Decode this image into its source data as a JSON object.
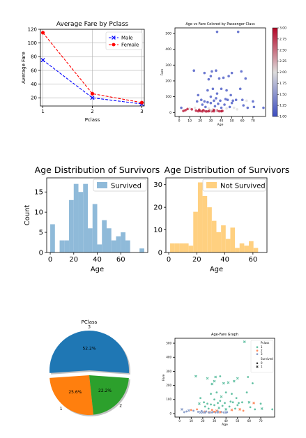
{
  "chart_data": [
    {
      "type": "line",
      "title": "Average Fare by Pclass",
      "xlabel": "Pclass",
      "ylabel": "Average Fare",
      "x": [
        1,
        2,
        3
      ],
      "xticks": [
        "1",
        "2",
        "3"
      ],
      "xlim": [
        0.95,
        3.05
      ],
      "ylim": [
        8,
        120
      ],
      "yticks": [
        "20",
        "40",
        "60",
        "80",
        "100",
        "120"
      ],
      "grid": true,
      "legend": "top-right",
      "series": [
        {
          "name": "Male",
          "values": [
            75,
            20,
            11
          ],
          "color": "#0000ff",
          "marker": "x"
        },
        {
          "name": "Female",
          "values": [
            115,
            26,
            13
          ],
          "color": "#ff0000",
          "marker": "o"
        }
      ]
    },
    {
      "type": "scatter",
      "title": "Age vs Fare Colored by Passenger Class",
      "xlabel": "Age",
      "ylabel": "Fare",
      "xlim": [
        -4,
        82
      ],
      "ylim": [
        -25,
        535
      ],
      "xticks": [
        "0",
        "10",
        "20",
        "30",
        "40",
        "50",
        "60",
        "70"
      ],
      "yticks": [
        "0",
        "100",
        "200",
        "300",
        "400",
        "500"
      ],
      "colorbar": {
        "min": 1.0,
        "max": 3.0,
        "ticks": [
          "1.00",
          "1.25",
          "1.50",
          "1.75",
          "2.00",
          "2.25",
          "2.50",
          "2.75",
          "3.00"
        ]
      },
      "colormap": [
        "#3b4cc0",
        "#dddcdc",
        "#b40426"
      ],
      "points": [
        [
          2,
          30,
          1
        ],
        [
          4,
          10,
          3
        ],
        [
          6,
          15,
          3
        ],
        [
          8,
          22,
          3
        ],
        [
          10,
          25,
          2
        ],
        [
          12,
          20,
          3
        ],
        [
          14,
          265,
          1
        ],
        [
          15,
          30,
          2
        ],
        [
          16,
          12,
          3
        ],
        [
          17,
          70,
          1
        ],
        [
          18,
          110,
          1
        ],
        [
          19,
          18,
          3
        ],
        [
          20,
          9,
          3
        ],
        [
          21,
          80,
          1
        ],
        [
          22,
          50,
          1
        ],
        [
          22,
          13,
          2
        ],
        [
          23,
          15,
          3
        ],
        [
          24,
          70,
          1
        ],
        [
          24,
          250,
          1
        ],
        [
          25,
          35,
          1
        ],
        [
          25,
          8,
          3
        ],
        [
          26,
          10,
          2
        ],
        [
          27,
          65,
          1
        ],
        [
          27,
          140,
          1
        ],
        [
          28,
          210,
          1
        ],
        [
          28,
          8,
          3
        ],
        [
          29,
          12,
          3
        ],
        [
          30,
          230,
          1
        ],
        [
          30,
          100,
          1
        ],
        [
          30,
          60,
          1
        ],
        [
          31,
          260,
          1
        ],
        [
          31,
          8,
          3
        ],
        [
          32,
          150,
          1
        ],
        [
          32,
          20,
          2
        ],
        [
          33,
          75,
          1
        ],
        [
          33,
          8,
          3
        ],
        [
          34,
          40,
          1
        ],
        [
          35,
          265,
          1
        ],
        [
          35,
          90,
          1
        ],
        [
          36,
          120,
          1
        ],
        [
          36,
          12,
          3
        ],
        [
          37,
          55,
          1
        ],
        [
          38,
          215,
          1
        ],
        [
          38,
          8,
          3
        ],
        [
          39,
          75,
          1
        ],
        [
          40,
          30,
          1
        ],
        [
          40,
          150,
          1
        ],
        [
          41,
          10,
          3
        ],
        [
          42,
          220,
          1
        ],
        [
          43,
          50,
          1
        ],
        [
          44,
          85,
          1
        ],
        [
          45,
          26,
          2
        ],
        [
          45,
          140,
          1
        ],
        [
          46,
          80,
          1
        ],
        [
          47,
          230,
          1
        ],
        [
          48,
          35,
          1
        ],
        [
          49,
          110,
          1
        ],
        [
          50,
          250,
          1
        ],
        [
          50,
          60,
          1
        ],
        [
          51,
          75,
          1
        ],
        [
          52,
          30,
          2
        ],
        [
          54,
          80,
          1
        ],
        [
          55,
          20,
          2
        ],
        [
          56,
          510,
          1
        ],
        [
          58,
          150,
          1
        ],
        [
          59,
          260,
          1
        ],
        [
          60,
          80,
          1
        ],
        [
          61,
          45,
          1
        ],
        [
          63,
          215,
          1
        ],
        [
          64,
          75,
          2
        ],
        [
          65,
          30,
          1
        ],
        [
          70,
          70,
          1
        ],
        [
          71,
          35,
          1
        ],
        [
          80,
          30,
          1
        ],
        [
          36,
          510,
          1
        ],
        [
          22,
          7,
          3
        ],
        [
          18,
          8,
          3
        ],
        [
          26,
          7,
          3
        ],
        [
          33,
          16,
          3
        ],
        [
          40,
          8,
          3
        ],
        [
          28,
          26,
          2
        ],
        [
          30,
          13,
          2
        ],
        [
          35,
          10,
          2
        ]
      ]
    },
    {
      "type": "bar",
      "title": "Age Distribution of Survivors",
      "xlabel": "Age",
      "ylabel": "Count",
      "legend": "top-right",
      "series_name": "Survived",
      "color": "#8fbad9",
      "bin_start": 0,
      "bin_width": 4,
      "values": [
        7,
        0,
        3,
        3,
        13,
        17,
        15,
        17,
        6,
        12,
        2,
        8,
        6,
        3,
        4,
        5,
        3,
        0,
        0,
        1
      ],
      "xlim": [
        -3,
        83
      ],
      "ylim": [
        0,
        18.5
      ],
      "xticks": [
        "0",
        "20",
        "40",
        "60"
      ],
      "yticks": [
        "0",
        "5",
        "10",
        "15"
      ]
    },
    {
      "type": "bar",
      "title": "Age Distribution of Survivors",
      "xlabel": "Age",
      "ylabel": "",
      "legend": "top-right",
      "series_name": "Not Survived",
      "color": "#ffd080",
      "bin_start": 1,
      "bin_width": 3.3,
      "values": [
        4,
        4,
        4,
        4,
        3,
        18,
        31,
        25,
        20,
        14,
        9,
        12,
        6,
        11,
        2,
        4,
        3,
        5,
        2
      ],
      "xlim": [
        -2,
        70
      ],
      "ylim": [
        0,
        33
      ],
      "xticks": [
        "0",
        "20",
        "40",
        "60"
      ],
      "yticks": [
        "0",
        "10",
        "20",
        "30"
      ]
    },
    {
      "type": "pie",
      "title": "PClass",
      "slices": [
        {
          "label": "3",
          "value": 52.2,
          "pct": "52.2%",
          "color": "#1f77b4",
          "explode": true
        },
        {
          "label": "1",
          "value": 25.6,
          "pct": "25.6%",
          "color": "#ff7f0e",
          "explode": false
        },
        {
          "label": "2",
          "value": 22.2,
          "pct": "22.2%",
          "color": "#2ca02c",
          "explode": false
        }
      ]
    },
    {
      "type": "scatter",
      "title": "Age-Fare Graph",
      "xlabel": "Age",
      "ylabel": "Fare",
      "xlim": [
        -4,
        82
      ],
      "ylim": [
        -25,
        535
      ],
      "xticks": [
        "0",
        "10",
        "20",
        "30",
        "40",
        "50",
        "60",
        "70"
      ],
      "yticks": [
        "0",
        "100",
        "200",
        "300",
        "400",
        "500"
      ],
      "legend": {
        "title1": "Pclass",
        "items1": [
          {
            "label": "1",
            "color": "#66c2a5"
          },
          {
            "label": "2",
            "color": "#fc8d62"
          },
          {
            "label": "3",
            "color": "#8da0cb"
          }
        ],
        "title2": "Survived",
        "items2": [
          {
            "label": "0",
            "marker": "dot"
          },
          {
            "label": "1",
            "marker": "x"
          }
        ]
      },
      "points": [
        [
          2,
          30,
          3
        ],
        [
          4,
          10,
          3
        ],
        [
          6,
          15,
          3
        ],
        [
          8,
          22,
          3
        ],
        [
          10,
          25,
          2
        ],
        [
          12,
          20,
          3
        ],
        [
          14,
          265,
          1
        ],
        [
          15,
          30,
          2
        ],
        [
          16,
          12,
          3
        ],
        [
          17,
          70,
          1
        ],
        [
          18,
          110,
          1
        ],
        [
          19,
          18,
          3
        ],
        [
          20,
          9,
          3
        ],
        [
          21,
          80,
          1
        ],
        [
          22,
          50,
          1
        ],
        [
          22,
          13,
          2
        ],
        [
          23,
          15,
          3
        ],
        [
          24,
          70,
          1
        ],
        [
          24,
          250,
          1
        ],
        [
          25,
          35,
          1
        ],
        [
          25,
          8,
          3
        ],
        [
          26,
          10,
          2
        ],
        [
          27,
          65,
          1
        ],
        [
          27,
          140,
          1
        ],
        [
          28,
          210,
          1
        ],
        [
          28,
          8,
          3
        ],
        [
          29,
          12,
          3
        ],
        [
          30,
          230,
          1
        ],
        [
          30,
          100,
          1
        ],
        [
          30,
          60,
          1
        ],
        [
          31,
          260,
          1
        ],
        [
          31,
          8,
          3
        ],
        [
          32,
          150,
          1
        ],
        [
          32,
          20,
          2
        ],
        [
          33,
          75,
          1
        ],
        [
          33,
          8,
          3
        ],
        [
          34,
          40,
          1
        ],
        [
          35,
          265,
          1
        ],
        [
          35,
          90,
          1
        ],
        [
          36,
          120,
          1
        ],
        [
          36,
          12,
          3
        ],
        [
          37,
          55,
          1
        ],
        [
          38,
          215,
          1
        ],
        [
          38,
          8,
          3
        ],
        [
          39,
          75,
          1
        ],
        [
          40,
          30,
          1
        ],
        [
          40,
          150,
          1
        ],
        [
          41,
          10,
          3
        ],
        [
          42,
          220,
          1
        ],
        [
          43,
          50,
          1
        ],
        [
          44,
          85,
          1
        ],
        [
          45,
          26,
          2
        ],
        [
          45,
          140,
          1
        ],
        [
          46,
          80,
          1
        ],
        [
          47,
          230,
          1
        ],
        [
          48,
          35,
          1
        ],
        [
          49,
          110,
          1
        ],
        [
          50,
          250,
          1
        ],
        [
          50,
          60,
          1
        ],
        [
          51,
          75,
          1
        ],
        [
          52,
          30,
          2
        ],
        [
          54,
          80,
          1
        ],
        [
          55,
          20,
          2
        ],
        [
          56,
          510,
          1
        ],
        [
          58,
          150,
          1
        ],
        [
          59,
          260,
          1
        ],
        [
          60,
          80,
          1
        ],
        [
          61,
          45,
          1
        ],
        [
          63,
          215,
          1
        ],
        [
          64,
          75,
          2
        ],
        [
          65,
          30,
          1
        ],
        [
          70,
          70,
          1
        ],
        [
          71,
          35,
          1
        ],
        [
          80,
          30,
          1
        ],
        [
          22,
          7,
          3
        ],
        [
          18,
          8,
          3
        ],
        [
          26,
          7,
          3
        ],
        [
          33,
          16,
          3
        ],
        [
          40,
          8,
          3
        ],
        [
          28,
          26,
          2
        ],
        [
          30,
          13,
          2
        ],
        [
          35,
          10,
          2
        ]
      ]
    }
  ]
}
